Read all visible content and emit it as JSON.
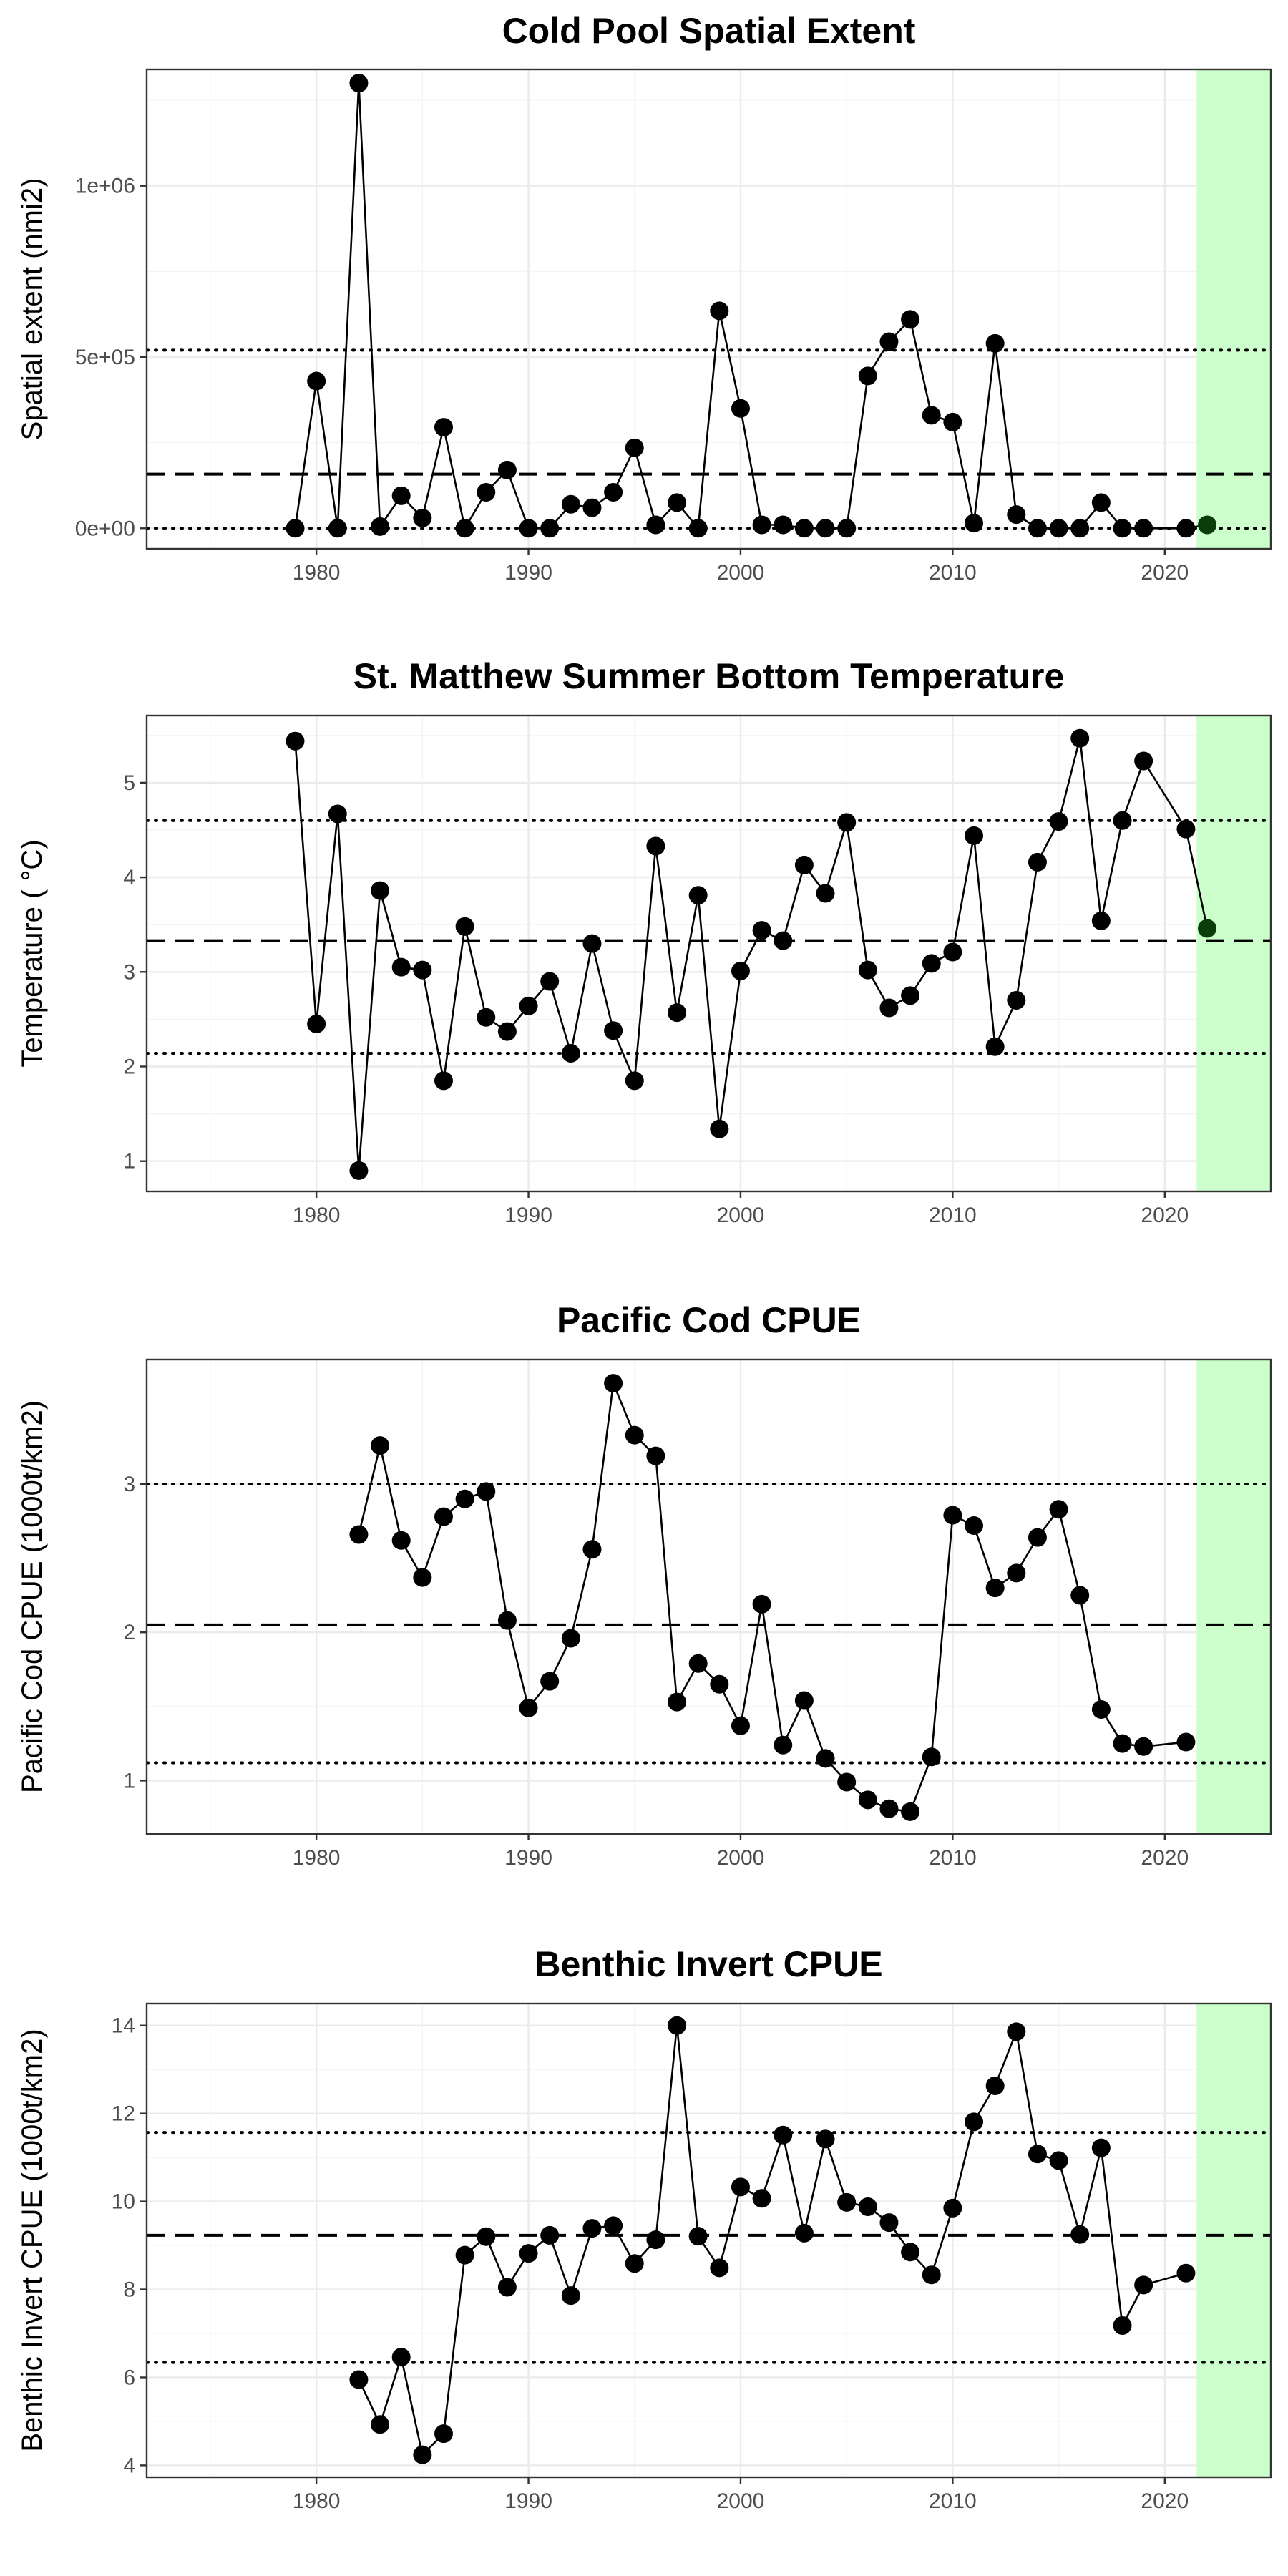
{
  "colors": {
    "point": "#000000",
    "current_point": "#0a3d0a",
    "highlight": "#ccffcc",
    "panel_border": "#333333",
    "grid": "#ebebeb"
  },
  "chart_data": [
    {
      "type": "line",
      "title": "Cold Pool Spatial Extent",
      "xlabel": "",
      "ylabel": "Spatial extent (nmi2)",
      "xlim": [
        1972,
        2025
      ],
      "ylim": [
        -60000,
        1340000
      ],
      "x_ticks": [
        1980,
        1990,
        2000,
        2010,
        2020
      ],
      "x_tick_labels": [
        "1980",
        "1990",
        "2000",
        "2010",
        "2020"
      ],
      "y_ticks": [
        0,
        500000,
        1000000
      ],
      "y_tick_labels": [
        "0e+00",
        "5e+05",
        "1e+06"
      ],
      "y_minor": [
        250000,
        750000,
        1250000
      ],
      "highlight_range": [
        2021.5,
        2025
      ],
      "reference_lines": {
        "mean": 158000,
        "upper_sd": 520000,
        "lower_sd": 0
      },
      "series": [
        {
          "x": [
            1979,
            1980,
            1981,
            1982,
            1983,
            1984,
            1985,
            1986,
            1987,
            1988,
            1989,
            1990,
            1991,
            1992,
            1993,
            1994,
            1995,
            1996,
            1997,
            1998,
            1999,
            2000,
            2001,
            2002,
            2003,
            2004,
            2005,
            2006,
            2007,
            2008,
            2009,
            2010,
            2011,
            2012,
            2013,
            2014,
            2015,
            2016,
            2017,
            2018,
            2019,
            2021
          ],
          "values": [
            0,
            430000,
            0,
            1300000,
            5000,
            95000,
            30000,
            295000,
            0,
            105000,
            170000,
            0,
            0,
            70000,
            60000,
            105000,
            235000,
            10000,
            75000,
            0,
            635000,
            350000,
            10000,
            10000,
            0,
            0,
            0,
            445000,
            545000,
            610000,
            330000,
            310000,
            15000,
            540000,
            40000,
            0,
            0,
            0,
            75000,
            0,
            0,
            0
          ]
        }
      ],
      "current_point": {
        "x": 2022,
        "value": 10000
      }
    },
    {
      "type": "line",
      "title": "St. Matthew Summer Bottom Temperature",
      "xlabel": "",
      "ylabel": "Temperature ( °C)",
      "xlim": [
        1972,
        2025
      ],
      "ylim": [
        0.68,
        5.71
      ],
      "x_ticks": [
        1980,
        1990,
        2000,
        2010,
        2020
      ],
      "x_tick_labels": [
        "1980",
        "1990",
        "2000",
        "2010",
        "2020"
      ],
      "y_ticks": [
        1,
        2,
        3,
        4,
        5
      ],
      "y_tick_labels": [
        "1",
        "2",
        "3",
        "4",
        "5"
      ],
      "y_minor": [
        1.5,
        2.5,
        3.5,
        4.5,
        5.5
      ],
      "highlight_range": [
        2021.5,
        2025
      ],
      "reference_lines": {
        "mean": 3.33,
        "upper_sd": 4.6,
        "lower_sd": 2.14
      },
      "series": [
        {
          "x": [
            1979,
            1980,
            1981,
            1982,
            1983,
            1984,
            1985,
            1986,
            1987,
            1988,
            1989,
            1990,
            1991,
            1992,
            1993,
            1994,
            1995,
            1996,
            1997,
            1998,
            1999,
            2000,
            2001,
            2002,
            2003,
            2004,
            2005,
            2006,
            2007,
            2008,
            2009,
            2010,
            2011,
            2012,
            2013,
            2014,
            2015,
            2016,
            2017,
            2018,
            2019,
            2021,
            2022
          ],
          "values": [
            5.44,
            2.45,
            4.67,
            0.9,
            3.86,
            3.05,
            3.02,
            1.85,
            3.48,
            2.52,
            2.37,
            2.64,
            2.9,
            2.14,
            3.3,
            2.38,
            1.85,
            4.33,
            2.57,
            3.81,
            1.34,
            3.01,
            3.44,
            3.33,
            4.13,
            3.83,
            4.58,
            3.02,
            2.62,
            2.75,
            3.09,
            3.21,
            4.44,
            2.21,
            2.7,
            4.16,
            4.59,
            5.47,
            3.54,
            4.6,
            5.23,
            4.51,
            3.46
          ]
        }
      ],
      "current_point": {
        "x": 2022,
        "value": 3.46
      }
    },
    {
      "type": "line",
      "title": "Pacific Cod CPUE",
      "xlabel": "",
      "ylabel": "Pacific Cod CPUE (1000t/km2)",
      "xlim": [
        1972,
        2025
      ],
      "ylim": [
        0.64,
        3.84
      ],
      "x_ticks": [
        1980,
        1990,
        2000,
        2010,
        2020
      ],
      "x_tick_labels": [
        "1980",
        "1990",
        "2000",
        "2010",
        "2020"
      ],
      "y_ticks": [
        1,
        2,
        3
      ],
      "y_tick_labels": [
        "1",
        "2",
        "3"
      ],
      "y_minor": [
        1.5,
        2.5,
        3.5
      ],
      "highlight_range": [
        2021.5,
        2025
      ],
      "reference_lines": {
        "mean": 2.05,
        "upper_sd": 3.0,
        "lower_sd": 1.12
      },
      "series": [
        {
          "x": [
            1982,
            1983,
            1984,
            1985,
            1986,
            1987,
            1988,
            1989,
            1990,
            1991,
            1992,
            1993,
            1994,
            1995,
            1996,
            1997,
            1998,
            1999,
            2000,
            2001,
            2002,
            2003,
            2004,
            2005,
            2006,
            2007,
            2008,
            2009,
            2010,
            2011,
            2012,
            2013,
            2014,
            2015,
            2016,
            2017,
            2018,
            2019,
            2021
          ],
          "values": [
            2.66,
            3.26,
            2.62,
            2.37,
            2.78,
            2.9,
            2.95,
            2.08,
            1.49,
            1.67,
            1.96,
            2.56,
            3.68,
            3.33,
            3.19,
            1.53,
            1.79,
            1.65,
            1.37,
            2.19,
            1.24,
            1.54,
            1.15,
            0.99,
            0.87,
            0.81,
            0.79,
            1.16,
            2.79,
            2.72,
            2.3,
            2.4,
            2.64,
            2.83,
            2.25,
            1.48,
            1.25,
            1.23,
            1.26
          ]
        }
      ]
    },
    {
      "type": "line",
      "title": "Benthic Invert CPUE",
      "xlabel": "",
      "ylabel": "Benthic Invert CPUE (1000t/km2)",
      "xlim": [
        1972,
        2025
      ],
      "ylim": [
        3.73,
        14.5
      ],
      "x_ticks": [
        1980,
        1990,
        2000,
        2010,
        2020
      ],
      "x_tick_labels": [
        "1980",
        "1990",
        "2000",
        "2010",
        "2020"
      ],
      "y_ticks": [
        4,
        6,
        8,
        10,
        12,
        14
      ],
      "y_tick_labels": [
        "4",
        "6",
        "8",
        "10",
        "12",
        "14"
      ],
      "y_minor": [
        5,
        7,
        9,
        11,
        13
      ],
      "highlight_range": [
        2021.5,
        2025
      ],
      "reference_lines": {
        "mean": 9.23,
        "upper_sd": 11.57,
        "lower_sd": 6.34
      },
      "series": [
        {
          "x": [
            1982,
            1983,
            1984,
            1985,
            1986,
            1987,
            1988,
            1989,
            1990,
            1991,
            1992,
            1993,
            1994,
            1995,
            1996,
            1997,
            1998,
            1999,
            2000,
            2001,
            2002,
            2003,
            2004,
            2005,
            2006,
            2007,
            2008,
            2009,
            2010,
            2011,
            2012,
            2013,
            2014,
            2015,
            2016,
            2017,
            2018,
            2019,
            2021
          ],
          "values": [
            5.95,
            4.93,
            6.46,
            4.24,
            4.72,
            8.78,
            9.2,
            8.05,
            8.82,
            9.23,
            7.86,
            9.39,
            9.45,
            8.59,
            9.13,
            14.0,
            9.21,
            8.49,
            10.33,
            10.07,
            11.51,
            9.28,
            11.42,
            9.98,
            9.88,
            9.52,
            8.85,
            8.33,
            9.85,
            11.81,
            12.63,
            13.86,
            11.08,
            10.93,
            9.25,
            11.22,
            7.18,
            8.1,
            8.37
          ]
        }
      ]
    }
  ]
}
